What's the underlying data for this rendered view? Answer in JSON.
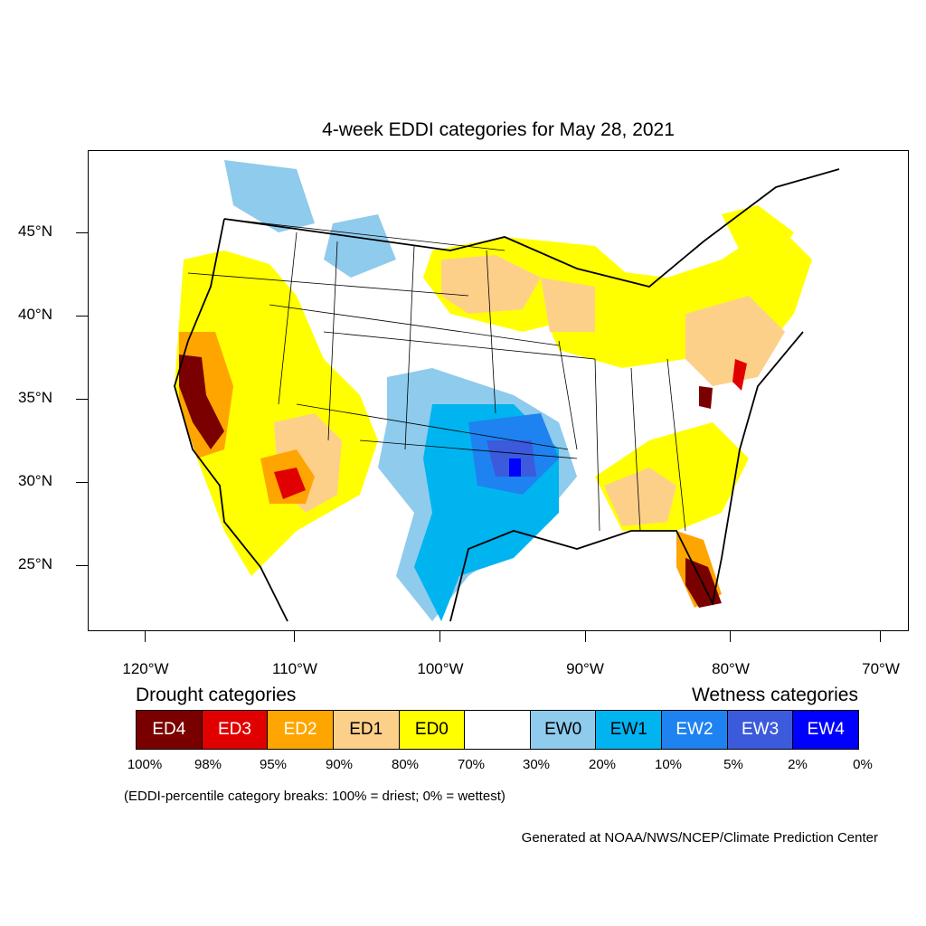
{
  "title": "4-week EDDI categories for May 28, 2021",
  "lat_labels": [
    "45°N",
    "40°N",
    "35°N",
    "30°N",
    "25°N"
  ],
  "lon_labels": [
    "120°W",
    "110°W",
    "100°W",
    "90°W",
    "80°W",
    "70°W"
  ],
  "legend": {
    "drought_title": "Drought categories",
    "wetness_title": "Wetness categories",
    "categories": [
      {
        "label": "ED4",
        "color": "#7a0000",
        "text_color": "#ffffff"
      },
      {
        "label": "ED3",
        "color": "#e00000",
        "text_color": "#ffffff"
      },
      {
        "label": "ED2",
        "color": "#ffa500",
        "text_color": "#ffffff"
      },
      {
        "label": "ED1",
        "color": "#fdd08a",
        "text_color": "#000000"
      },
      {
        "label": "ED0",
        "color": "#ffff00",
        "text_color": "#000000"
      },
      {
        "label": "",
        "color": "#ffffff",
        "text_color": "#000000"
      },
      {
        "label": "EW0",
        "color": "#8ecbec",
        "text_color": "#000000"
      },
      {
        "label": "EW1",
        "color": "#00b4f0",
        "text_color": "#000000"
      },
      {
        "label": "EW2",
        "color": "#1e82f0",
        "text_color": "#ffffff"
      },
      {
        "label": "EW3",
        "color": "#3c5adc",
        "text_color": "#ffffff"
      },
      {
        "label": "EW4",
        "color": "#0000ff",
        "text_color": "#ffffff"
      }
    ],
    "percent_breaks": [
      "100%",
      "98%",
      "95%",
      "90%",
      "80%",
      "70%",
      "30%",
      "20%",
      "10%",
      "5%",
      "2%",
      "0%"
    ]
  },
  "breaks_note": "(EDDI-percentile category breaks: 100% = driest; 0% = wettest)",
  "credit": "Generated at NOAA/NWS/NCEP/Climate Prediction Center"
}
